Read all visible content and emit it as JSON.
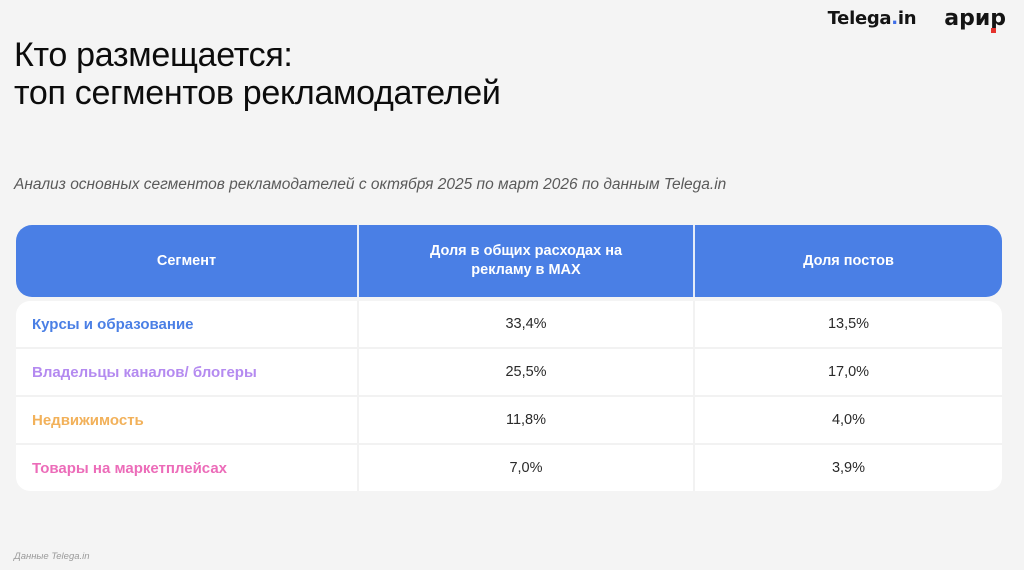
{
  "logos": {
    "telega_prefix": "Telega",
    "telega_dot": ".",
    "telega_suffix": "in",
    "arir": "арир",
    "telega_dot_color": "#3f6fe8",
    "arir_accent_color": "#e5322d"
  },
  "title": {
    "line1": "Кто размещается:",
    "line2": "топ сегментов рекламодателей"
  },
  "subtitle": "Анализ основных сегментов рекламодателей с октября 2025 по март 2026 по данным Telega.in",
  "table": {
    "header_color": "#4a7fe5",
    "columns": [
      "Сегмент",
      "Доля в общих расходах на рекламу в MAX",
      "Доля постов"
    ],
    "rows": [
      {
        "segment": "Курсы и образование",
        "color": "#4a7fe5",
        "spend_share": "33,4%",
        "posts_share": "13,5%"
      },
      {
        "segment": "Владельцы каналов/ блогеры",
        "color": "#b48af0",
        "spend_share": "25,5%",
        "posts_share": "17,0%"
      },
      {
        "segment": "Недвижимость",
        "color": "#f2b15a",
        "spend_share": "11,8%",
        "posts_share": "4,0%"
      },
      {
        "segment": "Товары на маркетплейсах",
        "color": "#ec6cb9",
        "spend_share": "7,0%",
        "posts_share": "3,9%"
      }
    ]
  },
  "footer": "Данные Telega.in"
}
